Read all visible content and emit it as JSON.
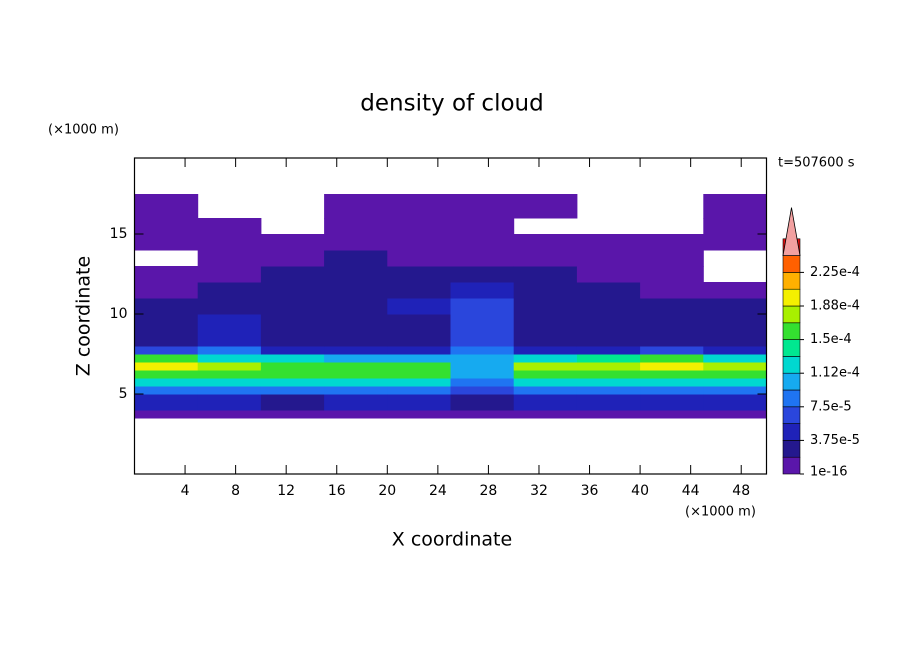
{
  "chart_data": {
    "type": "contour",
    "title": "density of cloud",
    "x_label": "X coordinate",
    "y_label": "Z coordinate",
    "x_unit": "(×1000 m)",
    "y_unit": "(×1000 m)",
    "time_label": "t=507600 s",
    "xlim": [
      0,
      50
    ],
    "ylim": [
      0,
      19.75
    ],
    "xticks": [
      4,
      8,
      12,
      16,
      20,
      24,
      28,
      32,
      36,
      40,
      44,
      48
    ],
    "yticks": [
      5,
      10,
      15
    ],
    "xbins": [
      0,
      5,
      10,
      15,
      20,
      25,
      30,
      35,
      40,
      45,
      50
    ],
    "zbins": [
      3.5,
      4,
      5,
      5.5,
      6,
      6.5,
      7,
      7.5,
      8,
      9,
      10,
      11,
      12,
      13,
      14,
      15,
      16,
      17.5
    ],
    "values": [
      [
        1e-05,
        1e-05,
        1e-05,
        1e-05,
        1e-05,
        1e-05,
        1e-05,
        1e-05,
        1e-05,
        1e-05
      ],
      [
        4e-05,
        4e-05,
        3e-05,
        4e-05,
        4e-05,
        3e-05,
        4e-05,
        4e-05,
        4e-05,
        4e-05
      ],
      [
        9e-05,
        8e-05,
        8e-05,
        9e-05,
        9e-05,
        6e-05,
        9e-05,
        9e-05,
        9e-05,
        9e-05
      ],
      [
        0.00013,
        0.000125,
        0.00013,
        0.00013,
        0.00013,
        9e-05,
        0.00013,
        0.00013,
        0.00013,
        0.00013
      ],
      [
        0.00016,
        0.000155,
        0.00016,
        0.00016,
        0.000155,
        0.0001,
        0.000155,
        0.00016,
        0.00016,
        0.00016
      ],
      [
        0.00019,
        0.00017,
        0.00016,
        0.000165,
        0.00016,
        0.0001,
        0.00017,
        0.00018,
        0.000195,
        0.00017
      ],
      [
        0.00015,
        0.00013,
        0.00012,
        0.00011,
        0.00011,
        0.0001,
        0.00012,
        0.000135,
        0.00015,
        0.00013
      ],
      [
        6e-05,
        8e-05,
        5e-05,
        4e-05,
        5e-05,
        8e-05,
        5e-05,
        5e-05,
        6e-05,
        5e-05
      ],
      [
        3e-05,
        5e-05,
        3e-05,
        3e-05,
        3e-05,
        6e-05,
        3e-05,
        3e-05,
        3e-05,
        3e-05
      ],
      [
        2.5e-05,
        4.5e-05,
        2.5e-05,
        2.5e-05,
        3e-05,
        6e-05,
        3e-05,
        2.5e-05,
        2.5e-05,
        2.5e-05
      ],
      [
        2e-05,
        2.5e-05,
        2e-05,
        2e-05,
        4e-05,
        6e-05,
        3e-05,
        2e-05,
        2e-05,
        2e-05
      ],
      [
        1e-05,
        2e-05,
        2e-05,
        2e-05,
        3e-05,
        4e-05,
        2e-05,
        2e-05,
        1e-05,
        1e-05
      ],
      [
        1e-05,
        1e-05,
        2e-05,
        2e-05,
        2e-05,
        2e-05,
        2e-05,
        1e-05,
        1e-05,
        0
      ],
      [
        0,
        1e-05,
        1e-05,
        2e-05,
        1e-05,
        1e-05,
        1e-05,
        1e-05,
        1e-05,
        0
      ],
      [
        1e-05,
        1e-05,
        1e-05,
        1e-05,
        1e-05,
        1e-05,
        1e-05,
        1e-05,
        1e-05,
        1e-05
      ],
      [
        1e-05,
        1e-05,
        0,
        1e-05,
        1e-05,
        1e-05,
        0,
        0,
        0,
        1e-05
      ],
      [
        1e-05,
        0,
        0,
        1e-05,
        1e-05,
        1e-05,
        1e-05,
        0,
        0,
        1e-05
      ]
    ],
    "levels": [
      1e-16,
      1.875e-05,
      3.75e-05,
      5.625e-05,
      7.5e-05,
      9.375e-05,
      0.0001125,
      0.00013125,
      0.00015,
      0.00016875,
      0.0001875,
      0.00020625,
      0.000225,
      0.00024375
    ],
    "colors": [
      "#5a16aa",
      "#24188e",
      "#1f22b8",
      "#2a46dc",
      "#1f74f2",
      "#16aaf0",
      "#00d8d0",
      "#00e890",
      "#34e030",
      "#a8f000",
      "#f4f000",
      "#ffb000",
      "#ff6000",
      "#e01010"
    ],
    "extend_color": "#f2a0a0",
    "colorbar_ticks": [
      {
        "value": 1e-16,
        "label": "1e-16"
      },
      {
        "value": 3.75e-05,
        "label": "3.75e-5"
      },
      {
        "value": 7.5e-05,
        "label": "7.5e-5"
      },
      {
        "value": 0.0001125,
        "label": "1.12e-4"
      },
      {
        "value": 0.00015,
        "label": "1.5e-4"
      },
      {
        "value": 0.0001875,
        "label": "1.88e-4"
      },
      {
        "value": 0.000225,
        "label": "2.25e-4"
      }
    ]
  }
}
